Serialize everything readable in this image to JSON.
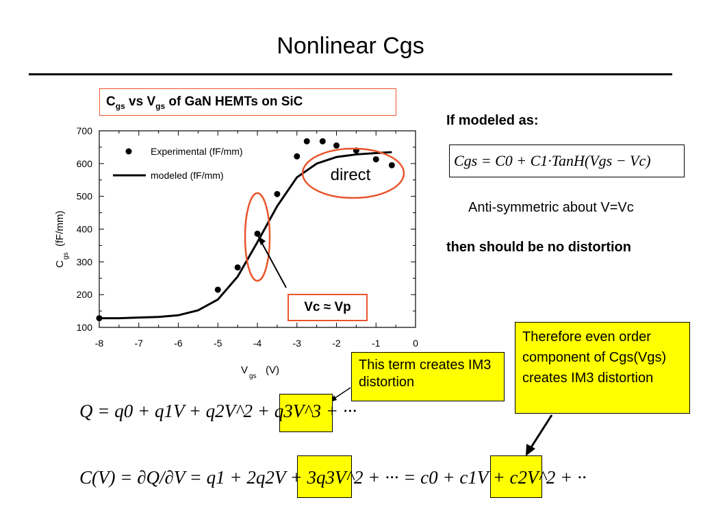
{
  "slide": {
    "title": "Nonlinear Cgs"
  },
  "chart_data": {
    "type": "scatter",
    "title": "Cgs vs Vgs of GaN HEMTs on SiC",
    "title_main": "C",
    "title_sub1": "gs",
    "title_mid": " vs V",
    "title_sub2": "gs",
    "title_end": " of GaN HEMTs on SiC",
    "xlabel_main": "V",
    "xlabel_sub": "gs",
    "xlabel_unit": "(V)",
    "ylabel_main": "C",
    "ylabel_sub": "gs",
    "ylabel_unit": "(fF/mm)",
    "xlim": [
      -8,
      0
    ],
    "ylim": [
      100,
      700
    ],
    "xticks": [
      -8,
      -7,
      -6,
      -5,
      -4,
      -3,
      -2,
      -1,
      0
    ],
    "yticks": [
      100,
      200,
      300,
      400,
      500,
      600,
      700
    ],
    "legend_position": "top-left",
    "series": [
      {
        "name": "Experimental (fF/mm)",
        "type": "scatter",
        "x": [
          -8.0,
          -5.0,
          -4.5,
          -4.0,
          -3.5,
          -3.0,
          -2.75,
          -2.35,
          -2.0,
          -1.5,
          -1.0,
          -0.6
        ],
        "y": [
          128,
          215,
          283,
          386,
          507,
          622,
          668,
          668,
          655,
          640,
          613,
          595
        ]
      },
      {
        "name": "modeled (fF/mm)",
        "type": "line",
        "x": [
          -8.0,
          -7.5,
          -7.0,
          -6.5,
          -6.0,
          -5.5,
          -5.0,
          -4.5,
          -4.0,
          -3.5,
          -3.0,
          -2.5,
          -2.0,
          -1.5,
          -1.0,
          -0.6
        ],
        "y": [
          128,
          128,
          130,
          132,
          137,
          152,
          185,
          255,
          360,
          470,
          558,
          600,
          620,
          628,
          632,
          635
        ]
      }
    ],
    "annotations": {
      "direct": "direct",
      "vc_label": "Vc ≈ Vp"
    }
  },
  "right_panel": {
    "modeled_heading": "If modeled as:",
    "anti_symmetric": "Anti-symmetric about V=Vc",
    "no_distortion": "then should be no distortion",
    "model_equation": "Cgs = C0 + C1·TanH(Vgs − Vc)"
  },
  "callouts": {
    "im3_term": "This term creates IM3 distortion",
    "even_order": "Therefore even order component of Cgs(Vgs) creates IM3 distortion"
  },
  "equations": {
    "charge": "Q = q0 + q1V + q2V^2 + q3V^3 + ···",
    "capacitance": "C(V) = ∂Q/∂V = q1 + 2q2V + 3q3V^2 + ··· = c0 + c1V + c2V^2 + ··"
  },
  "colors": {
    "accent_red": "#e8542a",
    "highlight_yellow": "#ffff00"
  }
}
